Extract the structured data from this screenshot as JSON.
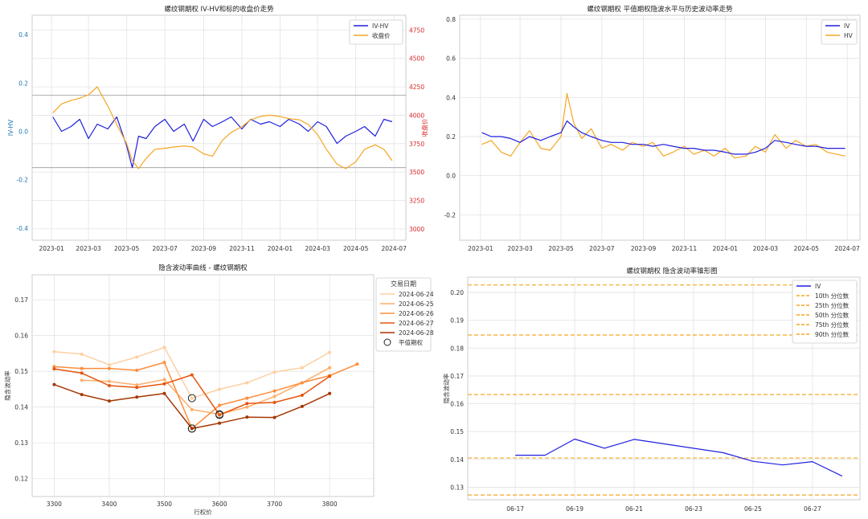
{
  "chart_data": [
    {
      "type": "line",
      "title": "螺纹钢期权 IV-HV和标的收盘价走势",
      "ylabel": "IV-HV",
      "y2label": "收盘价",
      "x_ticks": [
        "2023-01",
        "2023-03",
        "2023-05",
        "2023-07",
        "2023-09",
        "2023-11",
        "2024-01",
        "2024-03",
        "2024-05",
        "2024-07"
      ],
      "ylim": [
        -0.45,
        0.48
      ],
      "y_ticks": [
        -0.4,
        -0.2,
        0.0,
        0.2,
        0.4
      ],
      "y2lim": [
        2900,
        4880
      ],
      "y2_ticks": [
        3000,
        3250,
        3500,
        3750,
        4000,
        4250,
        4500,
        4750
      ],
      "hlines": [
        -0.15,
        0.15
      ],
      "grid": true,
      "legend": "top-right",
      "colors": {
        "iv_hv": "#1f1fe0",
        "close": "#f5a623",
        "right_axis": "#d62728",
        "left_axis": "#1f77b4"
      },
      "series": [
        {
          "name": "IV-HV",
          "axis": "left",
          "x": [
            "2023-01-03",
            "2023-01-17",
            "2023-02-01",
            "2023-02-15",
            "2023-03-01",
            "2023-03-15",
            "2023-04-01",
            "2023-04-15",
            "2023-05-01",
            "2023-05-10",
            "2023-05-20",
            "2023-06-01",
            "2023-06-15",
            "2023-07-01",
            "2023-07-15",
            "2023-08-01",
            "2023-08-15",
            "2023-09-01",
            "2023-09-15",
            "2023-10-01",
            "2023-10-15",
            "2023-11-01",
            "2023-11-15",
            "2023-12-01",
            "2023-12-15",
            "2024-01-01",
            "2024-01-15",
            "2024-02-01",
            "2024-02-15",
            "2024-03-01",
            "2024-03-15",
            "2024-04-01",
            "2024-04-15",
            "2024-05-01",
            "2024-05-15",
            "2024-06-01",
            "2024-06-15",
            "2024-06-28"
          ],
          "values": [
            0.06,
            0.0,
            0.02,
            0.05,
            -0.03,
            0.03,
            0.01,
            0.06,
            -0.06,
            -0.15,
            -0.02,
            -0.03,
            0.02,
            0.05,
            0.0,
            0.03,
            -0.04,
            0.05,
            0.02,
            0.04,
            0.06,
            0.01,
            0.05,
            0.03,
            0.04,
            0.02,
            0.05,
            0.03,
            0.0,
            0.04,
            0.02,
            -0.05,
            -0.02,
            0.0,
            0.02,
            -0.02,
            0.05,
            0.04
          ]
        },
        {
          "name": "收盘价",
          "axis": "right",
          "x": [
            "2023-01-03",
            "2023-01-17",
            "2023-02-01",
            "2023-02-15",
            "2023-03-01",
            "2023-03-15",
            "2023-04-01",
            "2023-04-15",
            "2023-05-01",
            "2023-05-10",
            "2023-05-20",
            "2023-06-01",
            "2023-06-15",
            "2023-07-01",
            "2023-07-15",
            "2023-08-01",
            "2023-08-15",
            "2023-09-01",
            "2023-09-15",
            "2023-10-01",
            "2023-10-15",
            "2023-11-01",
            "2023-11-15",
            "2023-12-01",
            "2023-12-15",
            "2024-01-01",
            "2024-01-15",
            "2024-02-01",
            "2024-02-15",
            "2024-03-01",
            "2024-03-15",
            "2024-04-01",
            "2024-04-15",
            "2024-05-01",
            "2024-05-15",
            "2024-06-01",
            "2024-06-15",
            "2024-06-28"
          ],
          "values": [
            4020,
            4100,
            4130,
            4150,
            4180,
            4250,
            4080,
            3920,
            3750,
            3600,
            3530,
            3620,
            3700,
            3710,
            3720,
            3730,
            3720,
            3660,
            3640,
            3780,
            3850,
            3900,
            3960,
            3990,
            4000,
            3990,
            3970,
            3960,
            3920,
            3830,
            3700,
            3570,
            3530,
            3590,
            3700,
            3740,
            3700,
            3600
          ]
        }
      ]
    },
    {
      "type": "line",
      "title": "螺纹钢期权 平值期权隐波水平与历史波动率走势",
      "x_ticks": [
        "2023-01",
        "2023-03",
        "2023-05",
        "2023-07",
        "2023-09",
        "2023-11",
        "2024-01",
        "2024-03",
        "2024-05",
        "2024-07"
      ],
      "ylim": [
        -0.33,
        0.82
      ],
      "y_ticks": [
        -0.2,
        0.0,
        0.2,
        0.4,
        0.6,
        0.8
      ],
      "grid": true,
      "legend": "top-right",
      "series": [
        {
          "name": "IV",
          "x": [
            "2023-01-03",
            "2023-01-17",
            "2023-02-01",
            "2023-02-15",
            "2023-03-01",
            "2023-03-15",
            "2023-04-01",
            "2023-04-15",
            "2023-05-01",
            "2023-05-10",
            "2023-05-20",
            "2023-06-01",
            "2023-06-15",
            "2023-07-01",
            "2023-07-15",
            "2023-08-01",
            "2023-08-15",
            "2023-09-01",
            "2023-09-15",
            "2023-10-01",
            "2023-10-15",
            "2023-11-01",
            "2023-11-15",
            "2023-12-01",
            "2023-12-15",
            "2024-01-01",
            "2024-01-15",
            "2024-02-01",
            "2024-02-15",
            "2024-03-01",
            "2024-03-15",
            "2024-04-01",
            "2024-04-15",
            "2024-05-01",
            "2024-05-15",
            "2024-06-01",
            "2024-06-15",
            "2024-06-28"
          ],
          "values": [
            0.22,
            0.2,
            0.2,
            0.19,
            0.17,
            0.2,
            0.18,
            0.2,
            0.22,
            0.28,
            0.25,
            0.22,
            0.2,
            0.18,
            0.17,
            0.17,
            0.16,
            0.16,
            0.15,
            0.16,
            0.15,
            0.14,
            0.14,
            0.13,
            0.13,
            0.12,
            0.11,
            0.11,
            0.12,
            0.14,
            0.18,
            0.17,
            0.16,
            0.15,
            0.15,
            0.14,
            0.14,
            0.14
          ]
        },
        {
          "name": "HV",
          "x": [
            "2023-01-03",
            "2023-01-17",
            "2023-02-01",
            "2023-02-15",
            "2023-03-01",
            "2023-03-15",
            "2023-04-01",
            "2023-04-15",
            "2023-05-01",
            "2023-05-10",
            "2023-05-20",
            "2023-06-01",
            "2023-06-15",
            "2023-07-01",
            "2023-07-15",
            "2023-08-01",
            "2023-08-15",
            "2023-09-01",
            "2023-09-15",
            "2023-10-01",
            "2023-10-15",
            "2023-11-01",
            "2023-11-15",
            "2023-12-01",
            "2023-12-15",
            "2024-01-01",
            "2024-01-15",
            "2024-02-01",
            "2024-02-15",
            "2024-03-01",
            "2024-03-15",
            "2024-04-01",
            "2024-04-15",
            "2024-05-01",
            "2024-05-15",
            "2024-06-01",
            "2024-06-15",
            "2024-06-28"
          ],
          "values": [
            0.16,
            0.18,
            0.12,
            0.1,
            0.17,
            0.23,
            0.14,
            0.13,
            0.2,
            0.42,
            0.27,
            0.19,
            0.24,
            0.14,
            0.16,
            0.13,
            0.17,
            0.15,
            0.17,
            0.1,
            0.12,
            0.15,
            0.11,
            0.13,
            0.1,
            0.14,
            0.09,
            0.1,
            0.15,
            0.12,
            0.21,
            0.14,
            0.18,
            0.15,
            0.16,
            0.12,
            0.11,
            0.1
          ]
        }
      ]
    },
    {
      "type": "line",
      "title": "隐含波动率曲线 - 螺纹钢期权",
      "xlabel": "行权价",
      "ylabel": "隐含波动率",
      "xlim": [
        3260,
        3880
      ],
      "ylim": [
        0.115,
        0.177
      ],
      "x_ticks": [
        3300,
        3400,
        3500,
        3600,
        3700,
        3800
      ],
      "y_ticks": [
        0.12,
        0.13,
        0.14,
        0.15,
        0.16,
        0.17
      ],
      "grid": true,
      "legend_title": "交易日期",
      "legend": "upper-right outside",
      "atm_label": "平值期权",
      "series": [
        {
          "name": "2024-06-24",
          "color": "#fdd0a2",
          "x": [
            3300,
            3350,
            3400,
            3450,
            3500,
            3550,
            3600,
            3650,
            3700,
            3750,
            3800
          ],
          "values": [
            0.1555,
            0.1548,
            0.1518,
            0.154,
            0.1567,
            0.1425,
            0.145,
            0.1468,
            0.1498,
            0.151,
            0.1553
          ],
          "atm": [
            3550,
            0.1425
          ]
        },
        {
          "name": "2024-06-25",
          "color": "#fdae6b",
          "x": [
            3350,
            3400,
            3450,
            3500,
            3550,
            3600,
            3650,
            3700,
            3750,
            3800
          ],
          "values": [
            0.1475,
            0.1472,
            0.1462,
            0.1477,
            0.1393,
            0.138,
            0.14,
            0.143,
            0.1468,
            0.151
          ],
          "atm": [
            3600,
            0.138
          ]
        },
        {
          "name": "2024-06-26",
          "color": "#fd8d3c",
          "x": [
            3300,
            3350,
            3400,
            3450,
            3500,
            3550,
            3600,
            3650,
            3700,
            3750,
            3800,
            3850
          ],
          "values": [
            0.1513,
            0.1508,
            0.1508,
            0.1503,
            0.1525,
            0.134,
            0.1405,
            0.1425,
            0.1445,
            0.1468,
            0.1488,
            0.152
          ],
          "atm": [
            3550,
            0.134
          ]
        },
        {
          "name": "2024-06-27",
          "color": "#e6550d",
          "x": [
            3300,
            3350,
            3400,
            3450,
            3500,
            3550,
            3600,
            3650,
            3700,
            3750,
            3800
          ],
          "values": [
            0.1507,
            0.1495,
            0.146,
            0.1455,
            0.1465,
            0.149,
            0.1378,
            0.141,
            0.1413,
            0.1433,
            0.1486
          ],
          "atm": [
            3600,
            0.1378
          ]
        },
        {
          "name": "2024-06-28",
          "color": "#a63603",
          "x": [
            3300,
            3350,
            3400,
            3450,
            3500,
            3550,
            3600,
            3650,
            3700,
            3750,
            3800
          ],
          "values": [
            0.1463,
            0.1435,
            0.1417,
            0.1428,
            0.1438,
            0.134,
            0.1355,
            0.1372,
            0.1371,
            0.1402,
            0.1438
          ],
          "atm": [
            3550,
            0.134
          ]
        }
      ]
    },
    {
      "type": "line",
      "title": "螺纹钢期权 隐含波动率锥形图",
      "ylabel": "隐含波动率",
      "x_ticks": [
        "06-17",
        "06-19",
        "06-21",
        "06-23",
        "06-25",
        "06-27"
      ],
      "ylim": [
        0.1255,
        0.2055
      ],
      "y_ticks": [
        0.13,
        0.14,
        0.15,
        0.16,
        0.17,
        0.18,
        0.19,
        0.2
      ],
      "grid": true,
      "legend": "top-right",
      "series": [
        {
          "name": "IV",
          "x": [
            "06-17",
            "06-18",
            "06-19",
            "06-20",
            "06-21",
            "06-24",
            "06-25",
            "06-26",
            "06-27",
            "06-28"
          ],
          "values": [
            0.1415,
            0.1415,
            0.1473,
            0.144,
            0.1472,
            0.1424,
            0.1393,
            0.138,
            0.1392,
            0.134
          ]
        }
      ],
      "percentiles": [
        {
          "name": "10th 分位数",
          "value": 0.1272
        },
        {
          "name": "25th 分位数",
          "value": 0.1405
        },
        {
          "name": "50th 分位数",
          "value": 0.1633
        },
        {
          "name": "75th 分位数",
          "value": 0.1847
        },
        {
          "name": "90th 分位数",
          "value": 0.2027
        }
      ]
    }
  ]
}
